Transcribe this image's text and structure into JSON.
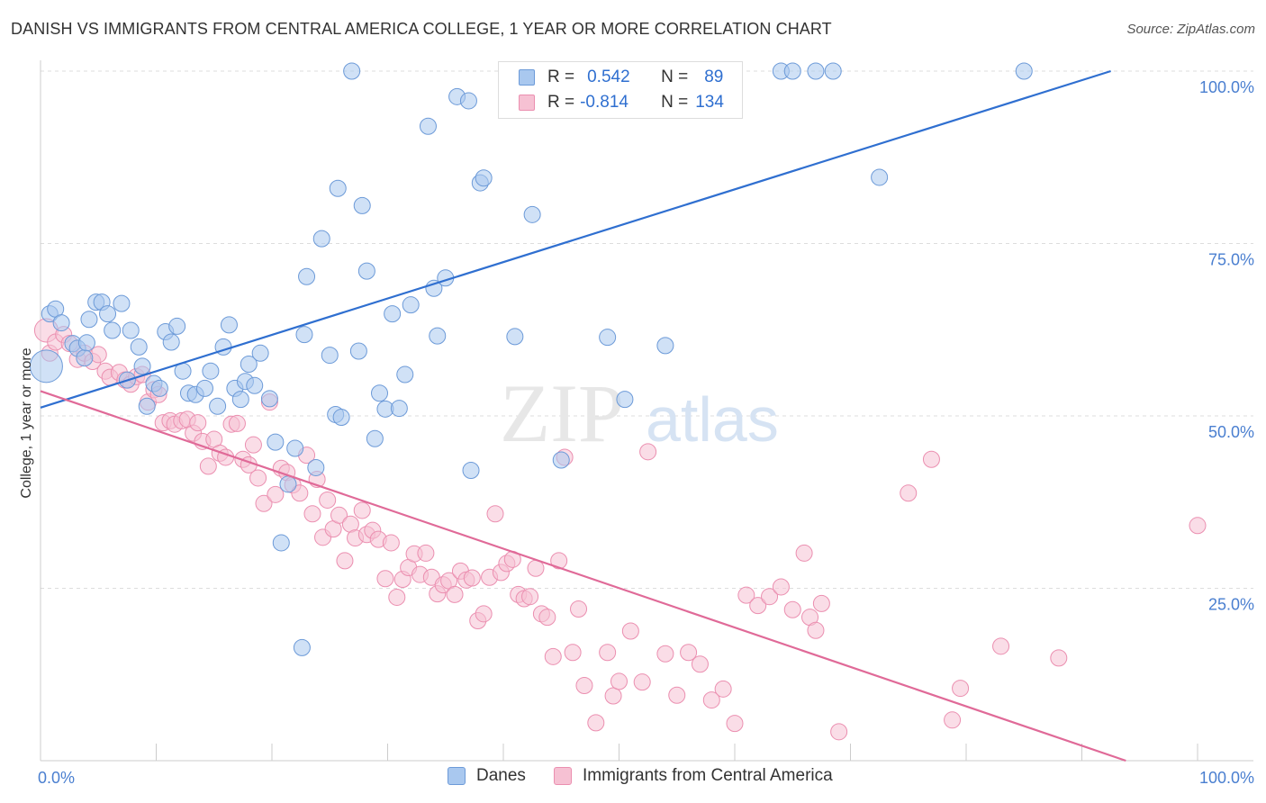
{
  "header": {
    "title": "DANISH VS IMMIGRANTS FROM CENTRAL AMERICA COLLEGE, 1 YEAR OR MORE CORRELATION CHART",
    "source": "Source: ZipAtlas.com"
  },
  "watermark": {
    "zip": "ZIP",
    "atlas": "atlas"
  },
  "legend_top": {
    "rows": [
      {
        "r_label": "R =",
        "r_value": "0.542",
        "n_label": "N =",
        "n_value": "89"
      },
      {
        "r_label": "R =",
        "r_value": "-0.814",
        "n_label": "N =",
        "n_value": "134"
      }
    ]
  },
  "colors": {
    "danes_fill": "#a9c8ef",
    "danes_stroke": "#6c9ad8",
    "danes_line": "#2f6fd0",
    "central_fill": "#f6c1d3",
    "central_stroke": "#eb8fb0",
    "central_line": "#e06a98",
    "grid": "#dddddd",
    "tick_label": "#4a7fd0"
  },
  "chart_data": {
    "type": "scatter",
    "title": "DANISH VS IMMIGRANTS FROM CENTRAL AMERICA COLLEGE, 1 YEAR OR MORE CORRELATION CHART",
    "xlabel": "",
    "ylabel": "College, 1 year or more",
    "xlim": [
      0,
      100
    ],
    "ylim": [
      0,
      100
    ],
    "x_tick_labels": [
      "0.0%",
      "100.0%"
    ],
    "y_tick_labels": [
      "25.0%",
      "50.0%",
      "75.0%",
      "100.0%"
    ],
    "y_ticks": [
      25,
      50,
      75,
      100
    ],
    "grid": true,
    "legend_position": "bottom",
    "series": [
      {
        "name": "Danes",
        "r": 0.542,
        "n": 89,
        "trend": {
          "x": [
            0,
            92.5
          ],
          "y": [
            51.2,
            100
          ]
        },
        "points": [
          [
            0.5,
            57.2
          ],
          [
            0.8,
            64.8
          ],
          [
            1.3,
            65.5
          ],
          [
            1.8,
            63.5
          ],
          [
            2.8,
            60.5
          ],
          [
            3.2,
            59.8
          ],
          [
            3.8,
            58.4
          ],
          [
            4.0,
            60.6
          ],
          [
            4.2,
            64.0
          ],
          [
            4.8,
            66.5
          ],
          [
            5.3,
            66.5
          ],
          [
            5.8,
            64.8
          ],
          [
            6.2,
            62.4
          ],
          [
            7.0,
            66.3
          ],
          [
            7.5,
            55.2
          ],
          [
            7.8,
            62.4
          ],
          [
            8.5,
            60.0
          ],
          [
            8.8,
            57.2
          ],
          [
            9.2,
            51.4
          ],
          [
            9.8,
            54.7
          ],
          [
            10.3,
            54.0
          ],
          [
            10.8,
            62.2
          ],
          [
            11.3,
            60.7
          ],
          [
            11.8,
            63.0
          ],
          [
            12.3,
            56.5
          ],
          [
            12.8,
            53.3
          ],
          [
            13.4,
            53.1
          ],
          [
            14.2,
            54.0
          ],
          [
            14.7,
            56.5
          ],
          [
            15.3,
            51.4
          ],
          [
            15.8,
            60.0
          ],
          [
            16.3,
            63.2
          ],
          [
            16.8,
            54.0
          ],
          [
            17.3,
            52.4
          ],
          [
            17.7,
            55.0
          ],
          [
            18.0,
            57.5
          ],
          [
            18.5,
            54.4
          ],
          [
            19.0,
            59.1
          ],
          [
            19.8,
            52.5
          ],
          [
            20.3,
            46.2
          ],
          [
            20.8,
            31.6
          ],
          [
            21.4,
            40.1
          ],
          [
            22.0,
            45.3
          ],
          [
            22.6,
            16.4
          ],
          [
            22.8,
            61.8
          ],
          [
            23.0,
            70.2
          ],
          [
            23.8,
            42.5
          ],
          [
            24.3,
            75.7
          ],
          [
            25.0,
            58.8
          ],
          [
            25.5,
            50.2
          ],
          [
            25.7,
            83.0
          ],
          [
            26.0,
            49.8
          ],
          [
            26.9,
            100.0
          ],
          [
            27.5,
            59.4
          ],
          [
            27.8,
            80.5
          ],
          [
            28.2,
            71.0
          ],
          [
            28.9,
            46.7
          ],
          [
            29.3,
            53.3
          ],
          [
            29.8,
            51.0
          ],
          [
            30.4,
            64.8
          ],
          [
            31.0,
            51.1
          ],
          [
            31.5,
            56.0
          ],
          [
            32.0,
            66.1
          ],
          [
            33.5,
            92.0
          ],
          [
            34.0,
            68.5
          ],
          [
            34.3,
            61.6
          ],
          [
            35.0,
            70.0
          ],
          [
            36.0,
            96.3
          ],
          [
            37.0,
            95.7
          ],
          [
            37.2,
            42.1
          ],
          [
            38.0,
            83.8
          ],
          [
            38.3,
            84.5
          ],
          [
            41.0,
            61.5
          ],
          [
            41.4,
            100.0
          ],
          [
            42.5,
            79.2
          ],
          [
            45.0,
            43.6
          ],
          [
            49.0,
            61.4
          ],
          [
            50.5,
            52.4
          ],
          [
            54.0,
            60.2
          ],
          [
            64.0,
            100.0
          ],
          [
            65.0,
            100.0
          ],
          [
            67.0,
            100.0
          ],
          [
            68.5,
            100.0
          ],
          [
            72.5,
            84.6
          ],
          [
            85.0,
            100.0
          ]
        ]
      },
      {
        "name": "Immigrants from Central America",
        "r": -0.814,
        "n": 134,
        "trend": {
          "x": [
            0,
            93.8
          ],
          "y": [
            53.6,
            0
          ]
        },
        "points": [
          [
            0.5,
            62.4
          ],
          [
            0.8,
            59.1
          ],
          [
            1.3,
            60.7
          ],
          [
            2.0,
            61.8
          ],
          [
            2.5,
            60.5
          ],
          [
            3.2,
            58.2
          ],
          [
            3.8,
            59.1
          ],
          [
            4.5,
            57.9
          ],
          [
            5.0,
            58.9
          ],
          [
            5.6,
            56.5
          ],
          [
            6.0,
            55.6
          ],
          [
            6.8,
            56.3
          ],
          [
            7.3,
            55.2
          ],
          [
            7.8,
            54.6
          ],
          [
            8.3,
            55.7
          ],
          [
            8.8,
            56.0
          ],
          [
            9.3,
            52.0
          ],
          [
            9.8,
            53.8
          ],
          [
            10.2,
            53.1
          ],
          [
            10.6,
            49.0
          ],
          [
            11.2,
            49.3
          ],
          [
            11.6,
            48.8
          ],
          [
            12.2,
            49.3
          ],
          [
            12.7,
            49.5
          ],
          [
            13.2,
            47.5
          ],
          [
            13.6,
            49.0
          ],
          [
            14.0,
            46.3
          ],
          [
            14.5,
            42.7
          ],
          [
            15.0,
            46.6
          ],
          [
            15.5,
            44.6
          ],
          [
            16.0,
            44.0
          ],
          [
            16.5,
            48.8
          ],
          [
            17.0,
            48.9
          ],
          [
            17.5,
            43.7
          ],
          [
            18.0,
            42.9
          ],
          [
            18.4,
            45.8
          ],
          [
            18.8,
            41.0
          ],
          [
            19.3,
            37.3
          ],
          [
            19.8,
            52.0
          ],
          [
            20.3,
            38.6
          ],
          [
            20.8,
            42.4
          ],
          [
            21.3,
            41.8
          ],
          [
            21.8,
            40.0
          ],
          [
            22.4,
            38.8
          ],
          [
            23.0,
            44.3
          ],
          [
            23.5,
            35.8
          ],
          [
            23.9,
            40.8
          ],
          [
            24.4,
            32.4
          ],
          [
            24.8,
            37.8
          ],
          [
            25.3,
            33.6
          ],
          [
            25.8,
            35.6
          ],
          [
            26.3,
            29.0
          ],
          [
            26.8,
            34.3
          ],
          [
            27.2,
            32.3
          ],
          [
            27.8,
            36.3
          ],
          [
            28.2,
            32.8
          ],
          [
            28.7,
            33.4
          ],
          [
            29.2,
            32.1
          ],
          [
            29.8,
            26.4
          ],
          [
            30.3,
            31.6
          ],
          [
            30.8,
            23.7
          ],
          [
            31.3,
            26.3
          ],
          [
            31.8,
            28.0
          ],
          [
            32.3,
            30.0
          ],
          [
            32.8,
            27.0
          ],
          [
            33.3,
            30.1
          ],
          [
            33.8,
            26.6
          ],
          [
            34.3,
            24.2
          ],
          [
            34.8,
            25.5
          ],
          [
            35.3,
            26.1
          ],
          [
            35.8,
            24.1
          ],
          [
            36.3,
            27.5
          ],
          [
            36.8,
            26.2
          ],
          [
            37.3,
            26.5
          ],
          [
            37.8,
            20.3
          ],
          [
            38.3,
            21.3
          ],
          [
            38.8,
            26.6
          ],
          [
            39.3,
            35.8
          ],
          [
            39.8,
            27.3
          ],
          [
            40.3,
            28.6
          ],
          [
            40.8,
            29.2
          ],
          [
            41.3,
            24.1
          ],
          [
            41.8,
            23.5
          ],
          [
            42.3,
            23.8
          ],
          [
            42.8,
            27.9
          ],
          [
            43.3,
            21.3
          ],
          [
            43.8,
            20.8
          ],
          [
            44.3,
            15.1
          ],
          [
            44.8,
            29.0
          ],
          [
            45.3,
            44.0
          ],
          [
            46.0,
            15.7
          ],
          [
            46.5,
            22.0
          ],
          [
            47.0,
            10.9
          ],
          [
            48.0,
            5.5
          ],
          [
            49.0,
            15.7
          ],
          [
            49.5,
            9.4
          ],
          [
            50.0,
            11.5
          ],
          [
            51.0,
            18.8
          ],
          [
            52.0,
            11.4
          ],
          [
            52.5,
            44.8
          ],
          [
            54.0,
            15.5
          ],
          [
            55.0,
            9.5
          ],
          [
            56.0,
            15.7
          ],
          [
            57.0,
            14.0
          ],
          [
            58.0,
            8.8
          ],
          [
            59.0,
            10.4
          ],
          [
            60.0,
            5.4
          ],
          [
            61.0,
            24.0
          ],
          [
            62.0,
            22.5
          ],
          [
            63.0,
            23.8
          ],
          [
            64.0,
            25.2
          ],
          [
            65.0,
            21.9
          ],
          [
            66.0,
            30.1
          ],
          [
            66.5,
            20.8
          ],
          [
            67.0,
            18.9
          ],
          [
            67.5,
            22.8
          ],
          [
            69.0,
            4.2
          ],
          [
            75.0,
            38.8
          ],
          [
            77.0,
            43.7
          ],
          [
            78.8,
            5.9
          ],
          [
            79.5,
            10.5
          ],
          [
            83.0,
            16.6
          ],
          [
            88.0,
            14.9
          ],
          [
            100.0,
            34.1
          ]
        ]
      }
    ]
  },
  "bottom_legend": {
    "items": [
      {
        "label": "Danes"
      },
      {
        "label": "Immigrants from Central America"
      }
    ]
  }
}
